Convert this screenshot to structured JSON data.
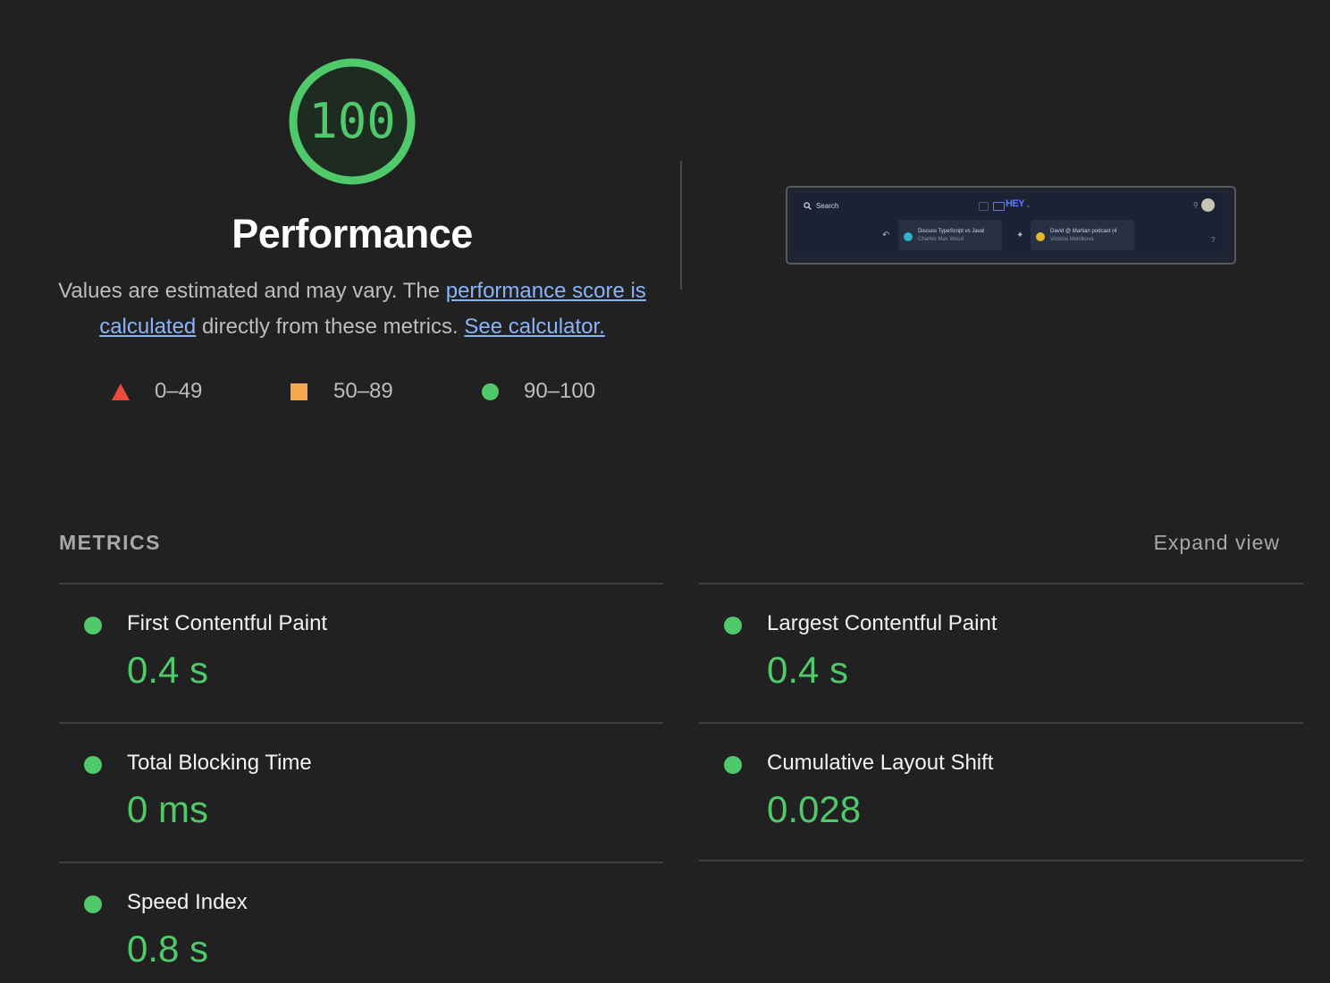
{
  "colors": {
    "pass": "#4fc96a",
    "average": "#f5a74b",
    "fail": "#eb4b3f",
    "link": "#8ab4f8",
    "background": "#212121"
  },
  "gauge": {
    "score": "100",
    "fill_fraction": 1.0
  },
  "category": {
    "title": "Performance",
    "desc_prefix": "Values are estimated and may vary. The ",
    "desc_link1": "performance score is calculated",
    "desc_middle": " directly from these metrics. ",
    "desc_link2": "See calculator."
  },
  "legend": [
    {
      "shape": "triangle-icon",
      "range": "0–49"
    },
    {
      "shape": "square-icon",
      "range": "50–89"
    },
    {
      "shape": "circle-icon",
      "range": "90–100"
    }
  ],
  "thumbnail": {
    "search": "Search",
    "logo": "HEY",
    "card1_title": "Discuss TypeScript vs Java!",
    "card1_sub": "Charles Max Wood",
    "card2_title": "David @ Martian podcast (4",
    "card2_sub": "Victoria Melnikova",
    "help": "?"
  },
  "metrics": {
    "heading": "METRICS",
    "expand_label": "Expand view",
    "items": [
      {
        "name": "First Contentful Paint",
        "value": "0.4 s",
        "status": "pass"
      },
      {
        "name": "Largest Contentful Paint",
        "value": "0.4 s",
        "status": "pass"
      },
      {
        "name": "Total Blocking Time",
        "value": "0 ms",
        "status": "pass"
      },
      {
        "name": "Cumulative Layout Shift",
        "value": "0.028",
        "status": "pass"
      },
      {
        "name": "Speed Index",
        "value": "0.8 s",
        "status": "pass"
      }
    ]
  }
}
